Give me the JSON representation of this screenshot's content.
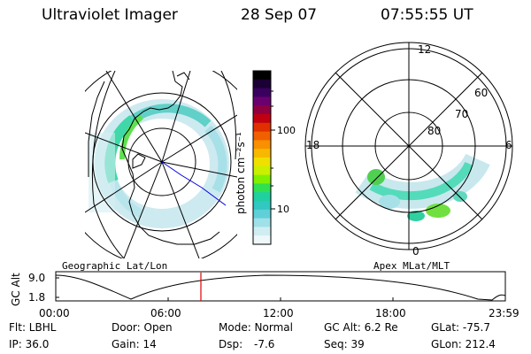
{
  "header": {
    "instrument": "Ultraviolet Imager",
    "date": "28 Sep 07",
    "time": "07:55:55 UT"
  },
  "colorbar": {
    "unit_label": "photon cm⁻²s⁻¹",
    "ticks": [
      "100",
      "10"
    ],
    "colors": [
      "#000000",
      "#1a0033",
      "#3a0060",
      "#6a0070",
      "#900040",
      "#c00010",
      "#e03000",
      "#f06000",
      "#f89000",
      "#f8b800",
      "#f0e000",
      "#c8f000",
      "#80f000",
      "#30e050",
      "#20d0a0",
      "#30c8c0",
      "#60d0d8",
      "#a0e0e8",
      "#d0eef2",
      "#eef8fa"
    ]
  },
  "left_map": {
    "caption": "Geographic Lat/Lon"
  },
  "right_map": {
    "caption": "Apex MLat/MLT",
    "lat_labels": [
      "80",
      "70",
      "60"
    ],
    "mlt_labels": {
      "top": "12",
      "left": "18",
      "right": "6",
      "bottom": "0"
    }
  },
  "altitude_plot": {
    "ylabel": "GC Alt",
    "ytick_top": "9.0",
    "ytick_bottom": "1.8",
    "xticks": [
      "00:00",
      "06:00",
      "12:00",
      "18:00",
      "23:59"
    ],
    "marker_color": "#e00000"
  },
  "status": {
    "row1": [
      "Flt: LBHL",
      "Door: Open",
      "Mode: Normal",
      "GC Alt: 6.2 Re",
      "GLat: -75.7"
    ],
    "row2": [
      "IP: 36.0",
      "Gain: 14",
      "Dsp:",
      "-7.6",
      "Seq: 39",
      "GLon: 212.4"
    ]
  }
}
